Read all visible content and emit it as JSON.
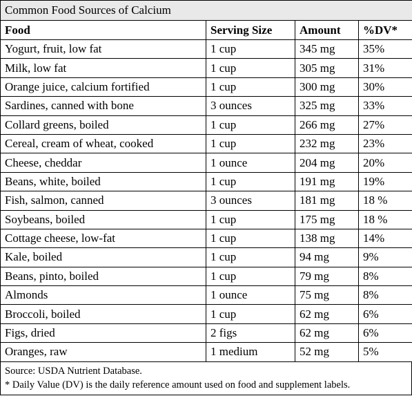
{
  "title": "Common Food Sources of Calcium",
  "table": {
    "header": [
      "Food",
      "Serving Size",
      "Amount",
      "%DV*"
    ],
    "rows": [
      [
        "Yogurt, fruit, low fat",
        "1 cup",
        "345 mg",
        "35%"
      ],
      [
        "Milk, low fat",
        "1 cup",
        "305 mg",
        "31%"
      ],
      [
        "Orange juice, calcium fortified",
        "1 cup",
        "300 mg",
        "30%"
      ],
      [
        "Sardines, canned with bone",
        "3 ounces",
        "325 mg",
        "33%"
      ],
      [
        "Collard greens, boiled",
        "1 cup",
        "266 mg",
        "27%"
      ],
      [
        "Cereal, cream of wheat, cooked",
        "1 cup",
        "232 mg",
        "23%"
      ],
      [
        "Cheese, cheddar",
        "1 ounce",
        "204 mg",
        "20%"
      ],
      [
        "Beans, white, boiled",
        "1 cup",
        "191 mg",
        "19%"
      ],
      [
        "Fish, salmon, canned",
        "3 ounces",
        "181 mg",
        "18 %"
      ],
      [
        "Soybeans, boiled",
        "1 cup",
        "175 mg",
        "18 %"
      ],
      [
        "Cottage cheese, low-fat",
        "1 cup",
        "138 mg",
        "14%"
      ],
      [
        "Kale, boiled",
        "1 cup",
        "94 mg",
        "9%"
      ],
      [
        "Beans, pinto, boiled",
        "1 cup",
        "79 mg",
        "8%"
      ],
      [
        "Almonds",
        "1 ounce",
        "75 mg",
        "8%"
      ],
      [
        "Broccoli, boiled",
        "1 cup",
        "62 mg",
        "6%"
      ],
      [
        "Figs, dried",
        "2 figs",
        "62 mg",
        "6%"
      ],
      [
        "Oranges, raw",
        "1 medium",
        "52 mg",
        "5%"
      ]
    ]
  },
  "footnotes": [
    "Source: USDA Nutrient Database.",
    "* Daily Value (DV) is the daily reference amount used on food and supplement labels."
  ]
}
